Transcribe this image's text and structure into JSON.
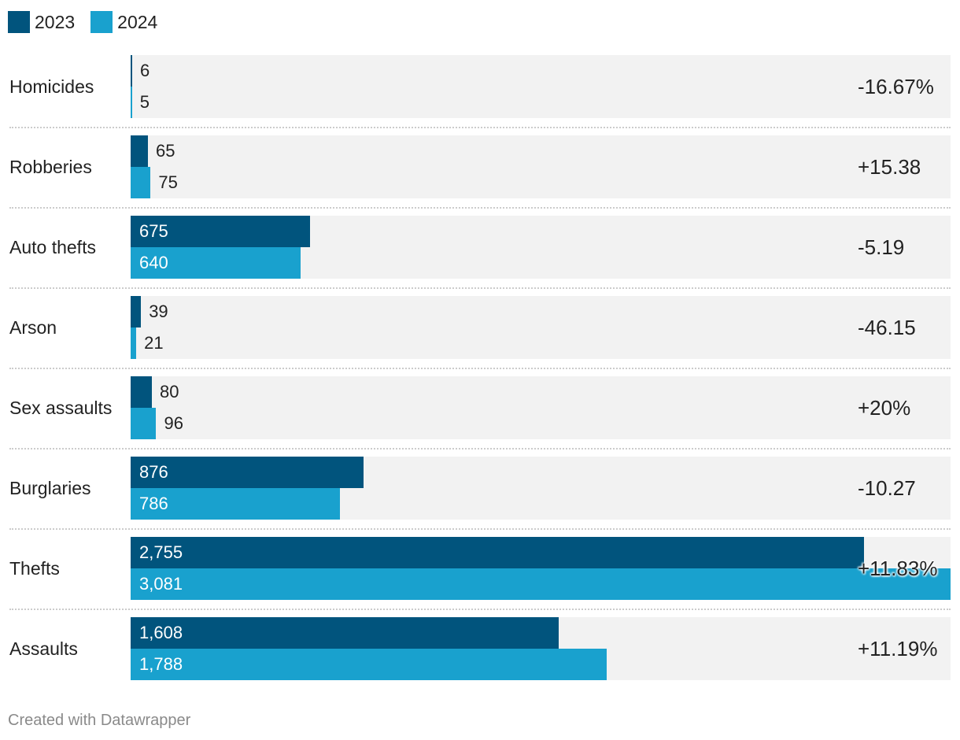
{
  "legend": [
    {
      "label": "2023",
      "color": "#01547d"
    },
    {
      "label": "2024",
      "color": "#19a1ce"
    }
  ],
  "chart_data": {
    "type": "bar",
    "orientation": "horizontal",
    "categories": [
      "Homicides",
      "Robberies",
      "Auto thefts",
      "Arson",
      "Sex assaults",
      "Burglaries",
      "Thefts",
      "Assaults"
    ],
    "series": [
      {
        "name": "2023",
        "color": "#01547d",
        "values": [
          6,
          65,
          675,
          39,
          80,
          876,
          2755,
          1608
        ],
        "labels": [
          "6",
          "65",
          "675",
          "39",
          "80",
          "876",
          "2,755",
          "1,608"
        ]
      },
      {
        "name": "2024",
        "color": "#19a1ce",
        "values": [
          5,
          75,
          640,
          21,
          96,
          786,
          3081,
          1788
        ],
        "labels": [
          "5",
          "75",
          "640",
          "21",
          "96",
          "786",
          "3,081",
          "1,788"
        ]
      }
    ],
    "change_labels": [
      "-16.67%",
      "+15.38",
      "-5.19",
      "-46.15",
      "+20%",
      "-10.27",
      "+11.83%",
      "+11.19%"
    ],
    "xlim": [
      0,
      3081
    ],
    "grid": false
  },
  "credit": "Created with Datawrapper"
}
